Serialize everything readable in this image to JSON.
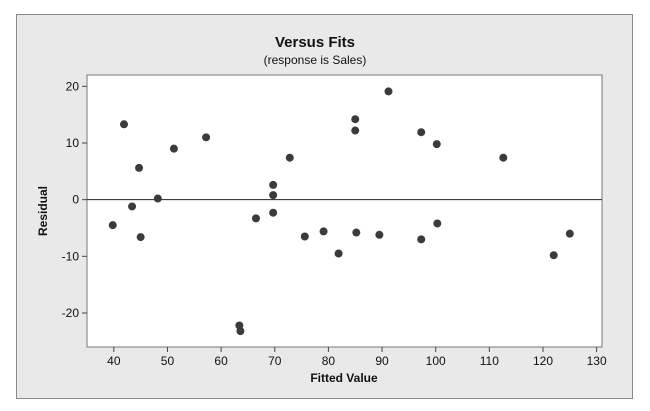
{
  "chart_data": {
    "type": "scatter",
    "title": "Versus Fits",
    "subtitle": "(response is Sales)",
    "xlabel": "Fitted Value",
    "ylabel": "Residual",
    "xlim": [
      35,
      131
    ],
    "ylim": [
      -26,
      22
    ],
    "xticks": [
      40,
      50,
      60,
      70,
      80,
      90,
      100,
      110,
      120,
      130
    ],
    "yticks": [
      -20,
      -10,
      0,
      10,
      20
    ],
    "reference_line_y": 0,
    "grid": false,
    "point_color": "#3b3b3b",
    "points": [
      {
        "x": 39.8,
        "y": -4.5
      },
      {
        "x": 41.9,
        "y": 13.3
      },
      {
        "x": 43.4,
        "y": -1.2
      },
      {
        "x": 44.7,
        "y": 5.6
      },
      {
        "x": 45.0,
        "y": -6.6
      },
      {
        "x": 48.2,
        "y": 0.2
      },
      {
        "x": 51.2,
        "y": 9.0
      },
      {
        "x": 57.2,
        "y": 11.0
      },
      {
        "x": 63.4,
        "y": -22.2
      },
      {
        "x": 63.6,
        "y": -23.2
      },
      {
        "x": 66.5,
        "y": -3.3
      },
      {
        "x": 69.7,
        "y": 2.6
      },
      {
        "x": 69.7,
        "y": 0.8
      },
      {
        "x": 69.7,
        "y": -2.3
      },
      {
        "x": 72.8,
        "y": 7.4
      },
      {
        "x": 75.6,
        "y": -6.5
      },
      {
        "x": 79.1,
        "y": -5.6
      },
      {
        "x": 81.9,
        "y": -9.5
      },
      {
        "x": 85.0,
        "y": 14.2
      },
      {
        "x": 85.0,
        "y": 12.2
      },
      {
        "x": 85.2,
        "y": -5.8
      },
      {
        "x": 89.5,
        "y": -6.2
      },
      {
        "x": 91.2,
        "y": 19.1
      },
      {
        "x": 97.3,
        "y": 11.9
      },
      {
        "x": 97.3,
        "y": -7.0
      },
      {
        "x": 100.2,
        "y": 9.8
      },
      {
        "x": 100.3,
        "y": -4.2
      },
      {
        "x": 112.6,
        "y": 7.4
      },
      {
        "x": 122.0,
        "y": -9.8
      },
      {
        "x": 125.0,
        "y": -6.0
      }
    ]
  }
}
